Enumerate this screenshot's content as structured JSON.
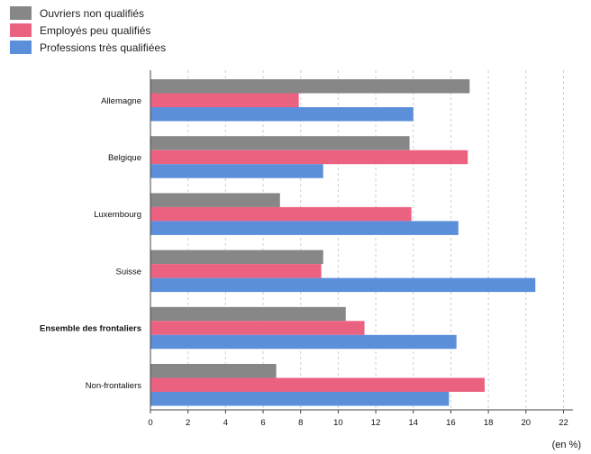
{
  "chart_data": {
    "type": "bar",
    "orientation": "horizontal",
    "categories": [
      "Allemagne",
      "Belgique",
      "Luxembourg",
      "Suisse",
      "Ensemble des frontaliers",
      "Non-frontaliers"
    ],
    "emphasized_category": "Ensemble des frontaliers",
    "series": [
      {
        "name": "Ouvriers non qualifiés",
        "color": "#878787",
        "values": [
          17.0,
          13.8,
          6.9,
          9.2,
          10.4,
          6.7
        ]
      },
      {
        "name": "Employés peu qualifiés",
        "color": "#eb6281",
        "values": [
          7.9,
          16.9,
          13.9,
          9.1,
          11.4,
          17.8
        ]
      },
      {
        "name": "Professions très qualifiées",
        "color": "#5b8fd9",
        "values": [
          14.0,
          9.2,
          16.4,
          20.5,
          16.3,
          15.9
        ]
      }
    ],
    "x_unit_label": "(en %)",
    "xlim": [
      0,
      22.5
    ],
    "x_ticks": [
      0,
      2,
      4,
      6,
      8,
      10,
      12,
      14,
      16,
      18,
      20,
      22
    ],
    "grid": "vertical-dashed",
    "legend_position": "top-left"
  }
}
